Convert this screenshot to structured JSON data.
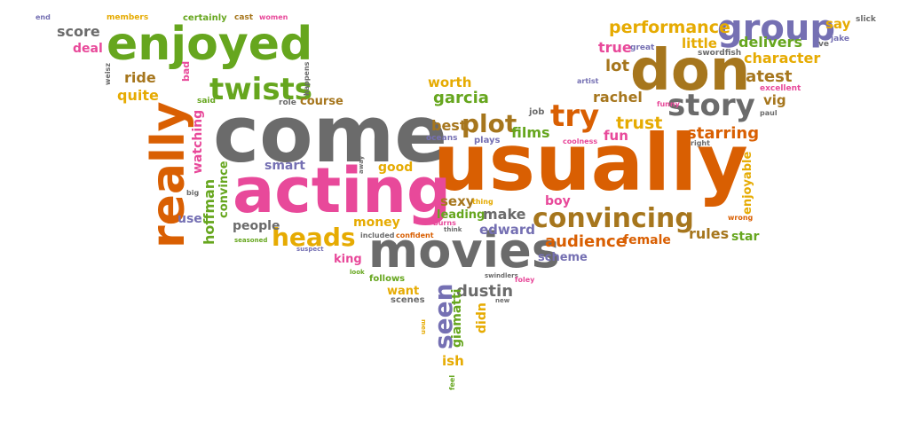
{
  "words": {
    "come": "come",
    "usually": "usually",
    "acting": "acting",
    "movies": "movies",
    "enjoyed": "enjoyed",
    "really": "really",
    "don": "don",
    "group": "group",
    "twists": "twists",
    "story": "story",
    "try": "try",
    "plot": "plot",
    "convincing": "convincing",
    "heads": "heads",
    "seen": "seen",
    "audience": "audience",
    "performance": "performance",
    "starring": "starring",
    "latest": "latest",
    "character": "character",
    "delivers": "delivers",
    "trust": "trust",
    "rachel": "rachel",
    "lot": "lot",
    "true": "true",
    "little": "little",
    "score": "score",
    "deal": "deal",
    "ride": "ride",
    "quite": "quite",
    "course": "course",
    "worth": "worth",
    "garcia": "garcia",
    "best": "best",
    "films": "films",
    "fun": "fun",
    "smart": "smart",
    "good": "good",
    "watching": "watching",
    "hoffman": "hoffman",
    "convince": "convince",
    "use": "use",
    "people": "people",
    "money": "money",
    "sexy": "sexy",
    "leading": "leading",
    "make": "make",
    "edward": "edward",
    "king": "king",
    "want": "want",
    "dustin": "dustin",
    "giamatti": "giamatti",
    "didn": "didn",
    "ish": "ish",
    "scheme": "scheme",
    "female": "female",
    "rules": "rules",
    "star": "star",
    "boy": "boy",
    "enjoyable": "enjoyable",
    "vig": "vig",
    "say": "say",
    "slick": "slick",
    "ve": "ve",
    "jake": "jake",
    "great": "great",
    "swordfish": "swordfish",
    "excellent": "excellent",
    "paul": "paul",
    "funny": "funny",
    "artist": "artist",
    "certainly": "certainly",
    "cast": "cast",
    "women": "women",
    "members": "members",
    "end": "end",
    "weisz": "weisz",
    "bad": "bad",
    "happens": "happens",
    "said": "said",
    "role": "role",
    "job": "job",
    "oceans": "oceans",
    "plays": "plays",
    "coolness": "coolness",
    "right": "right",
    "wrong": "wrong",
    "away": "away",
    "thing": "thing",
    "burns": "burns",
    "think": "think",
    "included": "included",
    "confident": "confident",
    "seasoned": "seasoned",
    "suspect": "suspect",
    "look": "look",
    "follows": "follows",
    "scenes": "scenes",
    "swindlers": "swindlers",
    "foley": "foley",
    "new": "new",
    "men": "men",
    "feel": "feel",
    "big": "big"
  },
  "palette": {
    "gray": "#6b6b6b",
    "pink": "#e8499a",
    "green": "#66a61e",
    "orange": "#d95f02",
    "purple": "#7570b3",
    "gold": "#e6ab02",
    "brown": "#a6761d"
  }
}
